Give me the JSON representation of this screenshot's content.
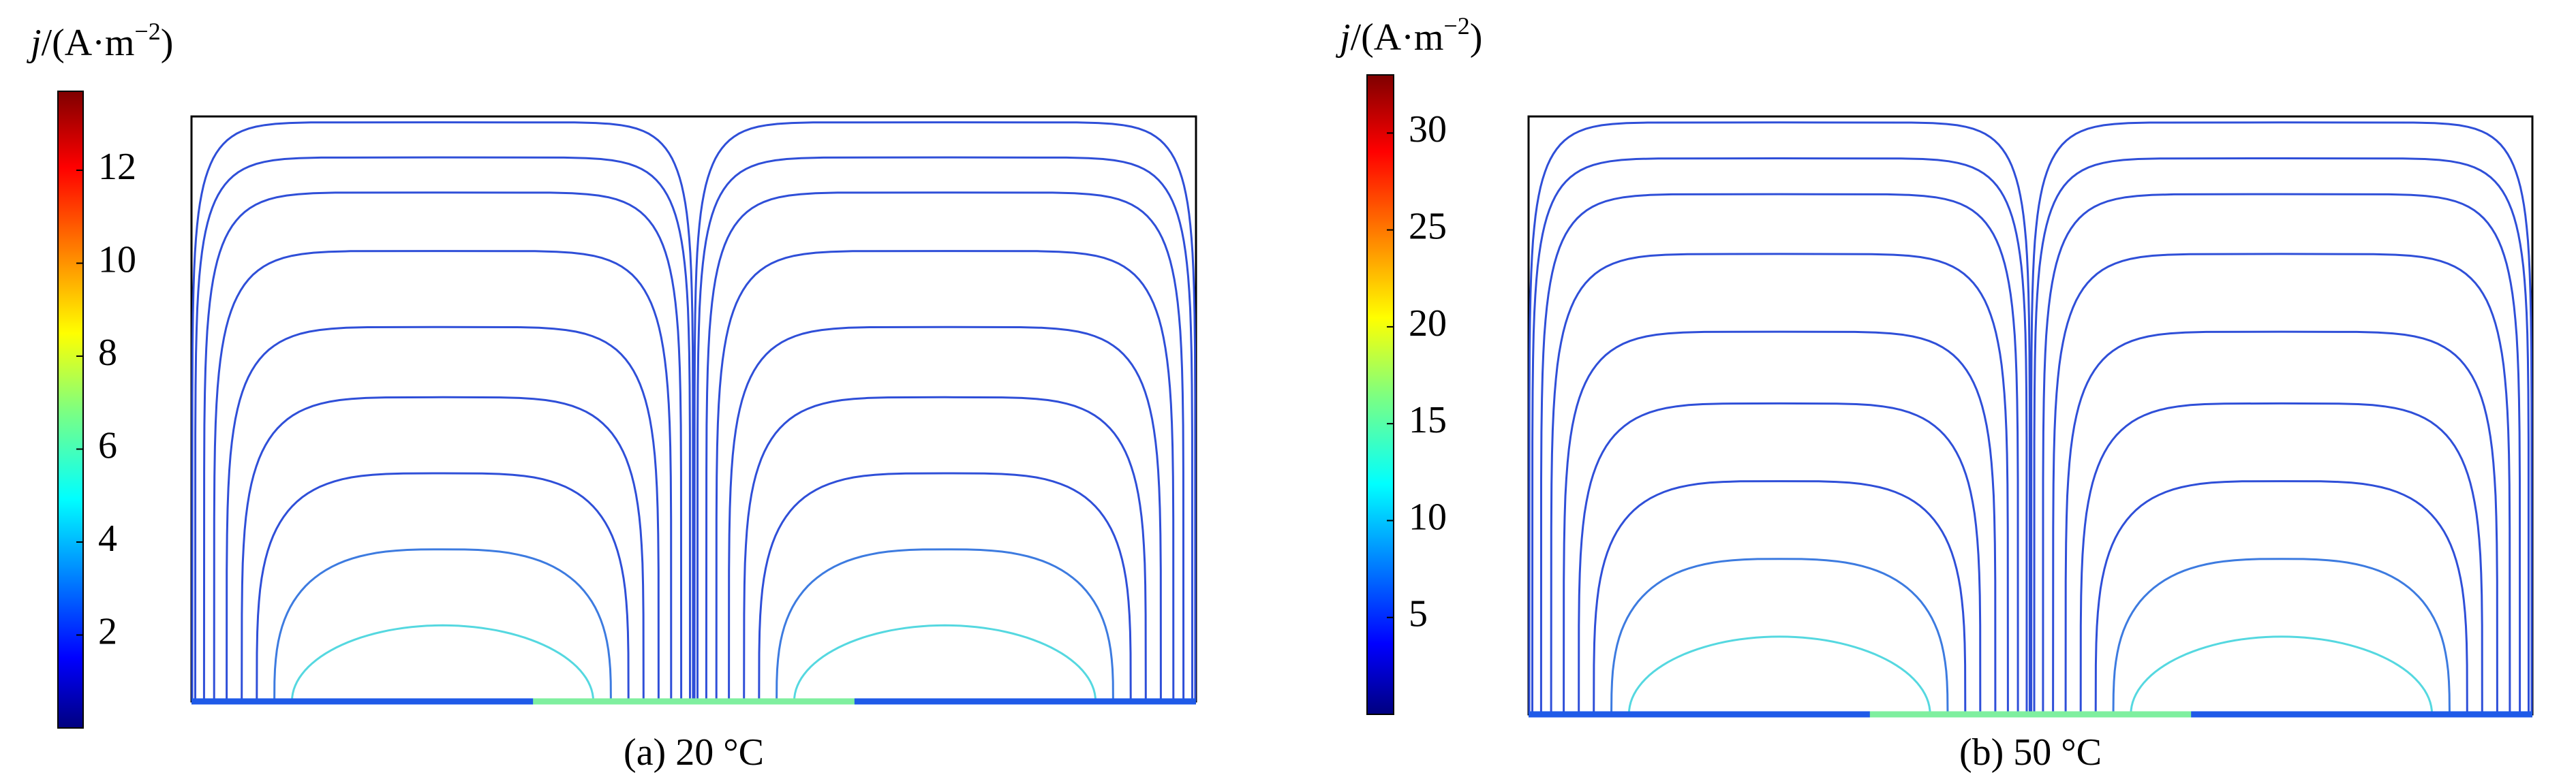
{
  "chart_data": [
    {
      "type": "streamline",
      "caption": "(a) 20 °C",
      "colorbar": {
        "symbol": "j",
        "unit": "/(A·m",
        "exponent": "−2",
        "close": ")",
        "colormap": "jet",
        "lim": [
          0,
          13.7
        ],
        "ticks": [
          2,
          4,
          6,
          8,
          10,
          12
        ]
      }
    },
    {
      "type": "streamline",
      "caption": "(b) 50 °C",
      "colorbar": {
        "symbol": "j",
        "unit": "/(A·m",
        "exponent": "−2",
        "close": ")",
        "colormap": "jet",
        "lim": [
          0,
          33
        ],
        "ticks": [
          5,
          10,
          15,
          20,
          25,
          30
        ]
      }
    }
  ]
}
